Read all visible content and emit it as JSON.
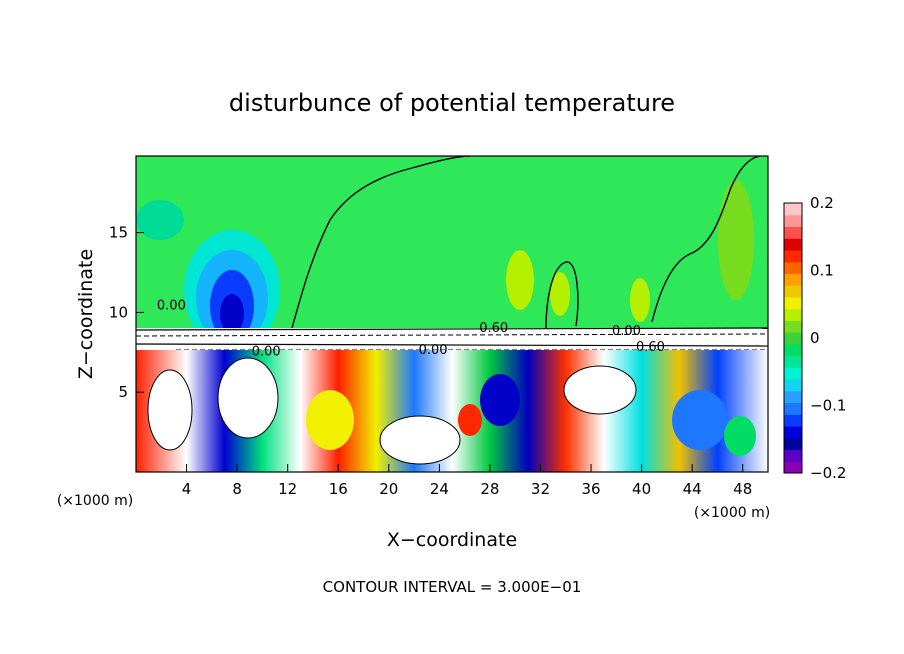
{
  "chart_data": {
    "type": "heatmap",
    "title": "disturbunce of potential temperature",
    "xlabel": "X−coordinate",
    "ylabel": "Z−coordinate",
    "x_unit": "(×1000 m)",
    "y_unit": "(×1000 m)",
    "xlim": [
      0,
      50
    ],
    "ylim": [
      0,
      19.8
    ],
    "x_ticks": [
      4,
      8,
      12,
      16,
      20,
      24,
      28,
      32,
      36,
      40,
      44,
      48
    ],
    "y_ticks": [
      5,
      10,
      15
    ],
    "contour_interval_text": "CONTOUR INTERVAL = 3.000E−01",
    "contour_labels": [
      {
        "text": "0.60",
        "x": 28.3,
        "z": 9.1
      },
      {
        "text": "0.00",
        "x": 10.3,
        "z": 7.6
      },
      {
        "text": "0.00",
        "x": 23.5,
        "z": 7.7
      },
      {
        "text": "0.60",
        "x": 40.7,
        "z": 7.9
      },
      {
        "text": "0.00",
        "x": 2.8,
        "z": 10.5
      },
      {
        "text": "0.00",
        "x": 38.8,
        "z": 8.9
      }
    ],
    "colorbar": {
      "min": -0.2,
      "max": 0.2,
      "tick_labels": [
        "0.2",
        "0.1",
        "0",
        "−0.1",
        "−0.2"
      ],
      "tick_values": [
        0.2,
        0.1,
        0,
        -0.1,
        -0.2
      ],
      "colors": [
        "#8a00b4",
        "#5a00c8",
        "#0000a0",
        "#0000dc",
        "#0a3cff",
        "#1e78ff",
        "#28a0ff",
        "#14d2f0",
        "#00f0d2",
        "#00e696",
        "#00dc64",
        "#3cd23c",
        "#78dc1e",
        "#b4f000",
        "#f0f000",
        "#f0c800",
        "#ffa000",
        "#ff6400",
        "#ff2800",
        "#dc0000",
        "#ff5050",
        "#ff9696",
        "#ffc8c8"
      ]
    },
    "grid": false
  }
}
